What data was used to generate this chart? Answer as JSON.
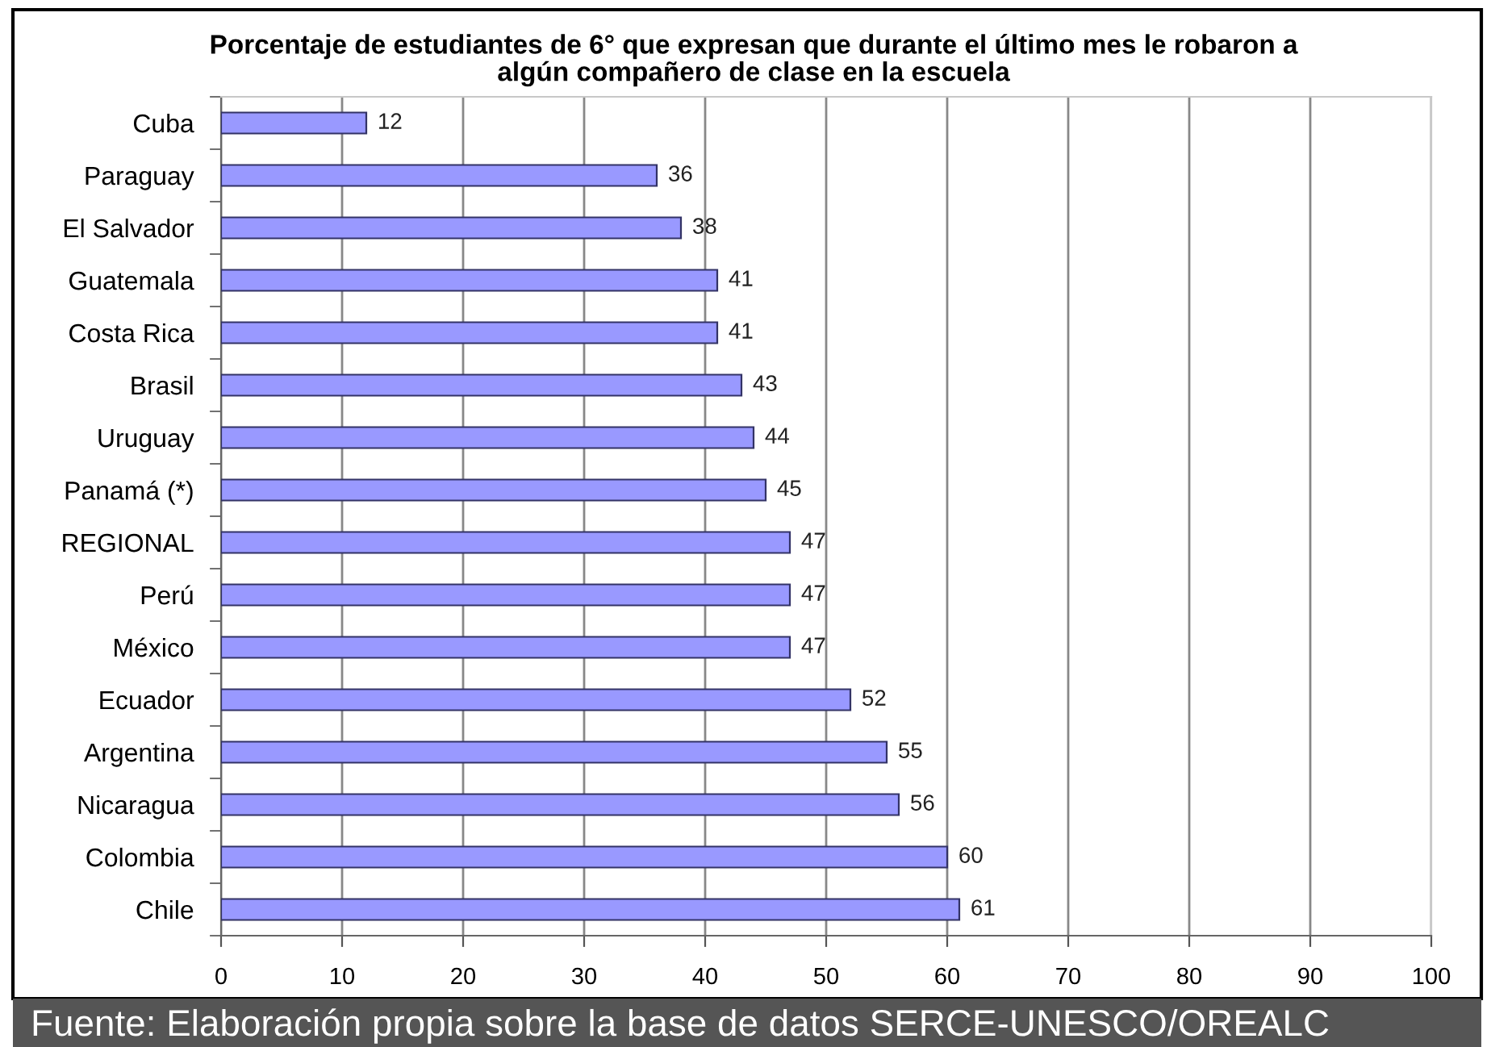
{
  "chart_data": {
    "type": "bar",
    "orientation": "horizontal",
    "title": "Porcentaje de estudiantes de 6° que expresan que durante el último mes le robaron a\nalgún compañero de clase en la escuela",
    "categories": [
      "Cuba",
      "Paraguay",
      "El Salvador",
      "Guatemala",
      "Costa Rica",
      "Brasil",
      "Uruguay",
      "Panamá (*)",
      "REGIONAL",
      "Perú",
      "México",
      "Ecuador",
      "Argentina",
      "Nicaragua",
      "Colombia",
      "Chile"
    ],
    "values": [
      12,
      36,
      38,
      41,
      41,
      43,
      44,
      45,
      47,
      47,
      47,
      52,
      55,
      56,
      60,
      61
    ],
    "color": "#9999ff",
    "xlim": [
      0,
      100
    ],
    "xticks": [
      0,
      10,
      20,
      30,
      40,
      50,
      60,
      70,
      80,
      90,
      100
    ],
    "grid": "x",
    "data_labels": true,
    "annotations": [
      "Fuente: Elaboración propia sobre la base de datos SERCE-UNESCO/OREALC"
    ]
  }
}
